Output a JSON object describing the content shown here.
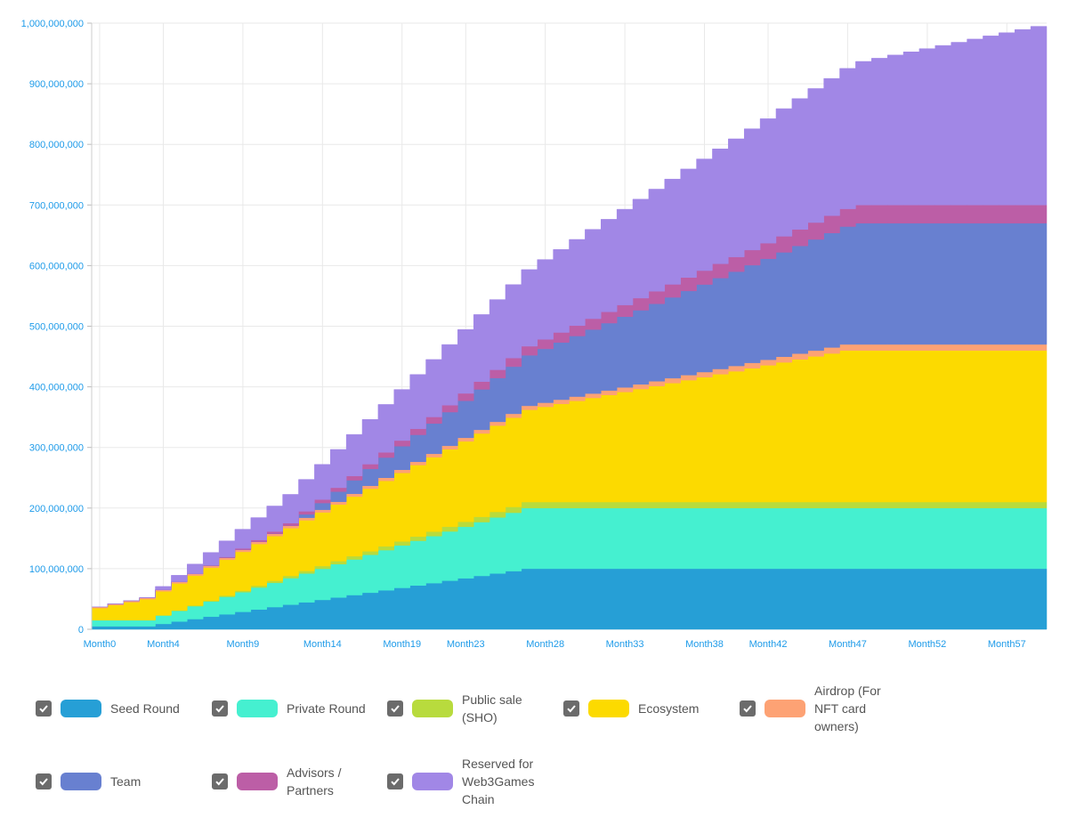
{
  "chart_data": {
    "type": "area",
    "title": "",
    "xlabel": "",
    "ylabel": "",
    "ylim": [
      0,
      1000000000
    ],
    "yticks": [
      0,
      100000000,
      200000000,
      300000000,
      400000000,
      500000000,
      600000000,
      700000000,
      800000000,
      900000000,
      1000000000
    ],
    "ytick_labels": [
      "0",
      "100,000,000",
      "200,000,000",
      "300,000,000",
      "400,000,000",
      "500,000,000",
      "600,000,000",
      "700,000,000",
      "800,000,000",
      "900,000,000",
      "1,000,000,000"
    ],
    "x_label_ticks": [
      "Month0",
      "Month4",
      "Month9",
      "Month14",
      "Month19",
      "Month23",
      "Month28",
      "Month33",
      "Month38",
      "Month42",
      "Month47",
      "Month52",
      "Month57"
    ],
    "months": 60,
    "stacked": true,
    "step": true,
    "grid": true,
    "legend_position": "bottom",
    "series": [
      {
        "name": "Seed Round",
        "color": "#269fd6",
        "total": 100000000,
        "initial": 5000000,
        "cliff": 3,
        "vest_months": 24
      },
      {
        "name": "Private Round",
        "color": "#45f0d0",
        "total": 100000000,
        "initial": 10000000,
        "cliff": 3,
        "vest_months": 24
      },
      {
        "name": "Public sale (SHO)",
        "color": "#b8db3d",
        "total": 10000000,
        "initial": 0,
        "cliff": 3,
        "vest_months": 24
      },
      {
        "name": "Ecosystem",
        "color": "#fcda00",
        "total": 250000000,
        "initial": 20000000,
        "cliff": 0,
        "vest_months": 47
      },
      {
        "name": "Airdrop (For NFT card owners)",
        "color": "#fda274",
        "total": 10000000,
        "initial": 2000000,
        "cliff": 0,
        "vest_months": 47
      },
      {
        "name": "Team",
        "color": "#6880d0",
        "total": 200000000,
        "initial": 0,
        "cliff": 12,
        "vest_months": 36
      },
      {
        "name": "Advisors / Partners",
        "color": "#bc5ea6",
        "total": 30000000,
        "initial": 0,
        "cliff": 6,
        "vest_months": 42
      },
      {
        "name": "Reserved for Web3Games Chain",
        "color": "#a187e6",
        "total": 300000000,
        "initial": 0,
        "cliff": 3,
        "vest_months": 57
      }
    ]
  },
  "legend": {
    "items": [
      {
        "label_lines": [
          "Seed Round"
        ],
        "color": "#269fd6",
        "checked": true
      },
      {
        "label_lines": [
          "Private Round"
        ],
        "color": "#45f0d0",
        "checked": true
      },
      {
        "label_lines": [
          "Public sale",
          "(SHO)"
        ],
        "color": "#b8db3d",
        "checked": true
      },
      {
        "label_lines": [
          "Ecosystem"
        ],
        "color": "#fcda00",
        "checked": true
      },
      {
        "label_lines": [
          "Airdrop (For",
          "NFT card",
          "owners)"
        ],
        "color": "#fda274",
        "checked": true
      },
      {
        "label_lines": [
          "Team"
        ],
        "color": "#6880d0",
        "checked": true
      },
      {
        "label_lines": [
          "Advisors /",
          "Partners"
        ],
        "color": "#bc5ea6",
        "checked": true
      },
      {
        "label_lines": [
          "Reserved for",
          "Web3Games",
          "Chain"
        ],
        "color": "#a187e6",
        "checked": true
      }
    ]
  }
}
